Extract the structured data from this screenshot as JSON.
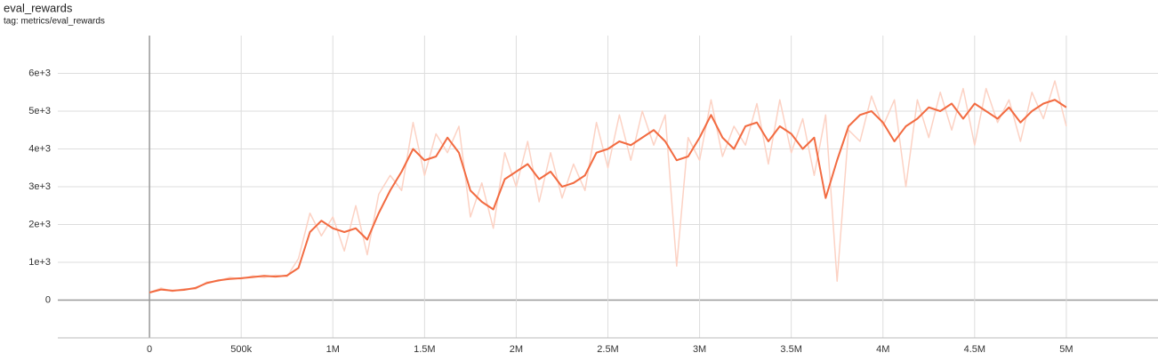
{
  "chart_data": {
    "type": "line",
    "title": "eval_rewards",
    "subtitle": "tag: metrics/eval_rewards",
    "x": [
      0,
      62500,
      125000,
      187500,
      250000,
      312500,
      375000,
      437500,
      500000,
      562500,
      625000,
      687500,
      750000,
      812500,
      875000,
      937500,
      1000000,
      1062500,
      1125000,
      1187500,
      1250000,
      1312500,
      1375000,
      1437500,
      1500000,
      1562500,
      1625000,
      1687500,
      1750000,
      1812500,
      1875000,
      1937500,
      2000000,
      2062500,
      2125000,
      2187500,
      2250000,
      2312500,
      2375000,
      2437500,
      2500000,
      2562500,
      2625000,
      2687500,
      2750000,
      2812500,
      2875000,
      2937500,
      3000000,
      3062500,
      3125000,
      3187500,
      3250000,
      3312500,
      3375000,
      3437500,
      3500000,
      3562500,
      3625000,
      3687500,
      3750000,
      3812500,
      3875000,
      3937500,
      4000000,
      4062500,
      4125000,
      4187500,
      4250000,
      4312500,
      4375000,
      4437500,
      4500000,
      4562500,
      4625000,
      4687500,
      4750000,
      4812500,
      4875000,
      4937500,
      5000000
    ],
    "series": [
      {
        "color": "#fcd2c4",
        "values": [
          200,
          320,
          230,
          300,
          290,
          480,
          500,
          600,
          560,
          640,
          600,
          660,
          620,
          1100,
          2300,
          1700,
          2200,
          1300,
          2500,
          1200,
          2800,
          3300,
          2900,
          4700,
          3300,
          4400,
          3900,
          4600,
          2200,
          3100,
          1900,
          3900,
          3000,
          4200,
          2600,
          3900,
          2700,
          3600,
          2900,
          4700,
          3500,
          4900,
          3700,
          5000,
          4100,
          4900,
          900,
          4300,
          3700,
          5300,
          3800,
          4600,
          4100,
          5200,
          3600,
          5300,
          3900,
          4800,
          3300,
          4900,
          500,
          4500,
          4200,
          5400,
          4600,
          5300,
          3000,
          5300,
          4300,
          5500,
          4500,
          5600,
          4100,
          5600,
          4700,
          5300,
          4200,
          5500,
          4800,
          5800,
          4600
        ]
      },
      {
        "color": "#f26b41",
        "values": [
          200,
          280,
          250,
          270,
          320,
          450,
          520,
          560,
          580,
          610,
          640,
          620,
          650,
          850,
          1800,
          2100,
          1900,
          1800,
          1900,
          1600,
          2300,
          2900,
          3400,
          4000,
          3700,
          3800,
          4300,
          3900,
          2900,
          2600,
          2400,
          3200,
          3400,
          3600,
          3200,
          3400,
          3000,
          3100,
          3300,
          3900,
          4000,
          4200,
          4100,
          4300,
          4500,
          4200,
          3700,
          3800,
          4300,
          4900,
          4300,
          4000,
          4600,
          4700,
          4200,
          4600,
          4400,
          4000,
          4300,
          2700,
          3700,
          4600,
          4900,
          5000,
          4700,
          4200,
          4600,
          4800,
          5100,
          5000,
          5200,
          4800,
          5200,
          5000,
          4800,
          5100,
          4700,
          5000,
          5200,
          5300,
          5100
        ]
      }
    ],
    "xlim": [
      -500000,
      5500000
    ],
    "xticks": [
      0,
      {
        "value": 500000,
        "label": "500k"
      },
      {
        "value": 1000000,
        "label": "1M"
      },
      {
        "value": 1500000,
        "label": "1.5M"
      },
      {
        "value": 2000000,
        "label": "2M"
      },
      {
        "value": 2500000,
        "label": "2.5M"
      },
      {
        "value": 3000000,
        "label": "3M"
      },
      {
        "value": 3500000,
        "label": "3.5M"
      },
      {
        "value": 4000000,
        "label": "4M"
      },
      {
        "value": 4500000,
        "label": "4.5M"
      },
      {
        "value": 5000000,
        "label": "5M"
      }
    ],
    "ylim": [
      -1000,
      7000
    ],
    "yticks": [
      0,
      {
        "value": 1000,
        "label": "1e+3"
      },
      {
        "value": 2000,
        "label": "2e+3"
      },
      {
        "value": 3000,
        "label": "3e+3"
      },
      {
        "value": 4000,
        "label": "4e+3"
      },
      {
        "value": 5000,
        "label": "5e+3"
      },
      {
        "value": 6000,
        "label": "6e+3"
      }
    ],
    "grid": true
  }
}
